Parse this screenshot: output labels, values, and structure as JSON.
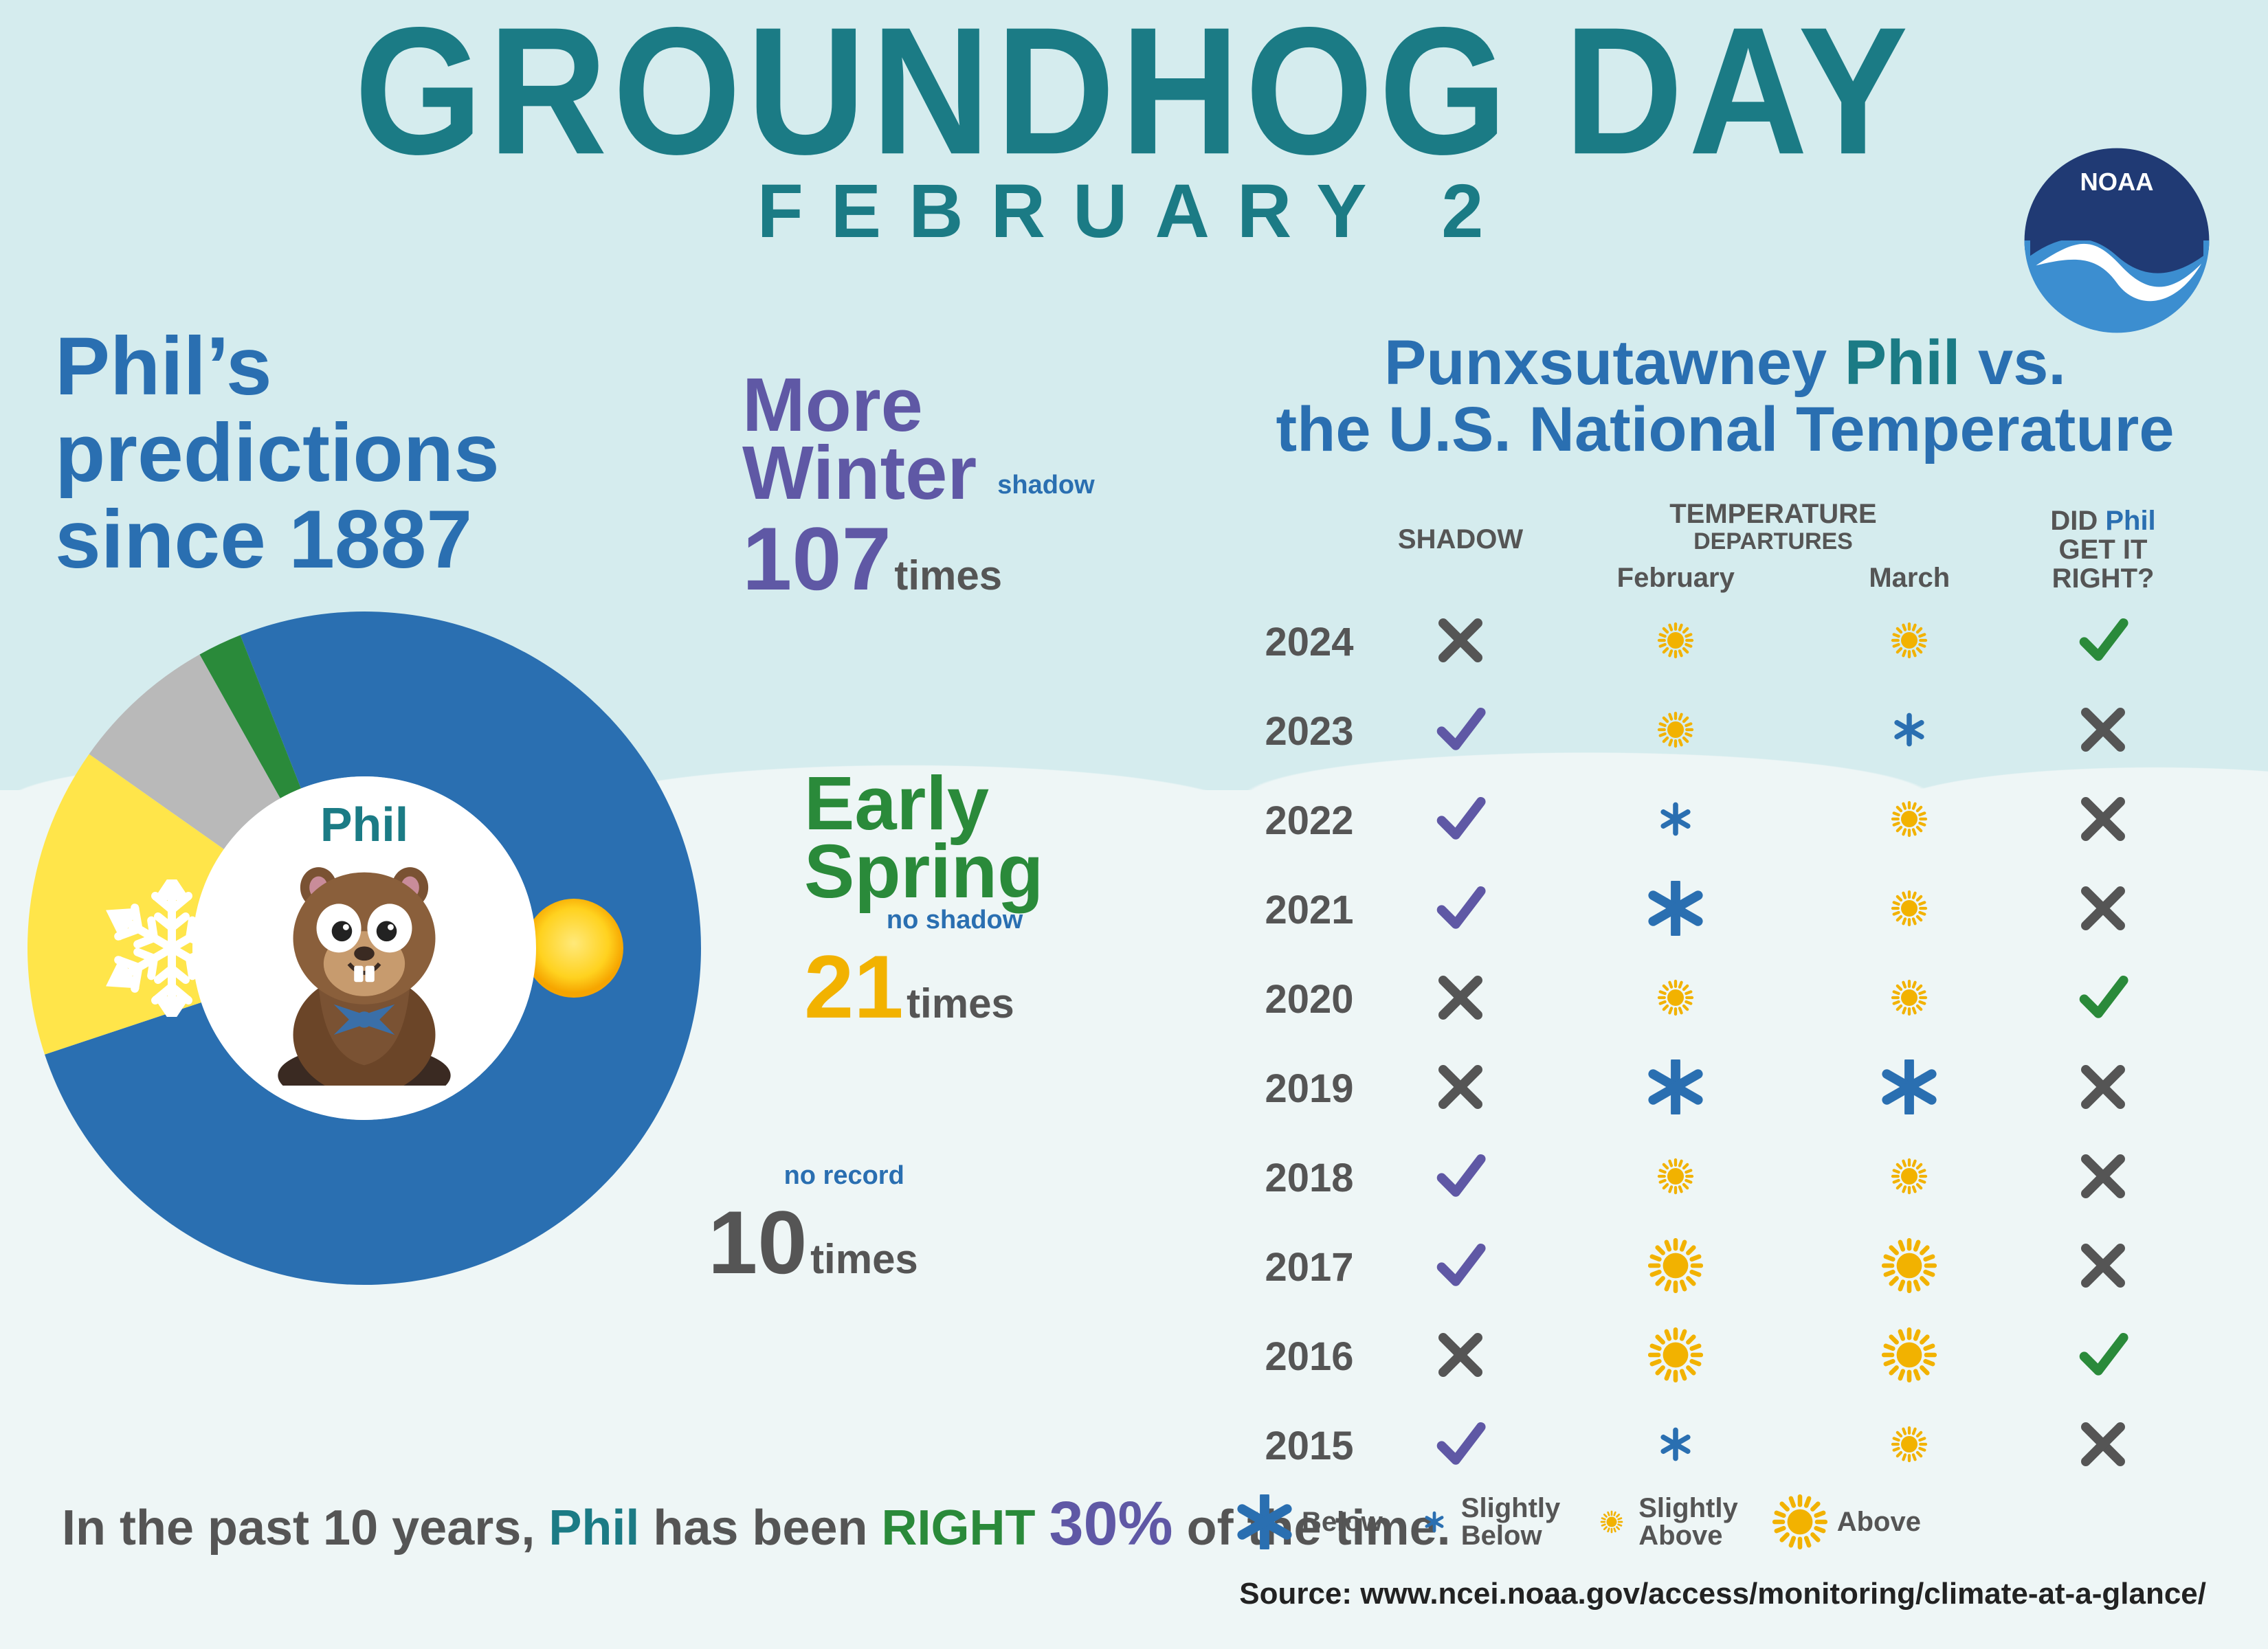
{
  "colors": {
    "bg_top": "#d5ecee",
    "bg_snow": "#eef6f6",
    "teal": "#1b7b85",
    "blue": "#2a6fb1",
    "purple": "#5f58a5",
    "green": "#2a8a3a",
    "yellow": "#f2b200",
    "gray": "#b9b9b9",
    "darkgray": "#555555",
    "donut_blue": "#2a6fb1",
    "donut_yellow": "#ffe54a",
    "donut_gray": "#b9b9b9",
    "donut_green": "#2a8a3a",
    "noaa_dark": "#203a74",
    "noaa_light": "#3c8ed0",
    "sun_fill": "#ffd21f",
    "sun_glow": "#f6a500",
    "check_green": "#2a8a3a",
    "check_purple": "#5f58a5",
    "x_gray": "#555555",
    "snowflake_blue": "#2a6fb1"
  },
  "title": {
    "main": "GROUNDHOG DAY",
    "sub": "FEBRUARY 2"
  },
  "noaa_label": "NOAA",
  "left_heading": {
    "l1": "Phil’s",
    "l2": "predictions",
    "l3": "since 1887"
  },
  "donut": {
    "type": "pie",
    "segments": {
      "winter": {
        "value": 107,
        "color": "#2a6fb1"
      },
      "spring": {
        "value": 21,
        "color": "#ffe54a"
      },
      "norecord": {
        "value": 10,
        "color": "#b9b9b9"
      },
      "gap": {
        "value": 3,
        "color": "#2a8a3a"
      }
    },
    "inner_radius": 250,
    "outer_radius": 490,
    "center_label": "Phil"
  },
  "kpi_winter": {
    "l1": "More",
    "l2": "Winter",
    "small": "shadow",
    "num": "107",
    "unit": "times"
  },
  "kpi_spring": {
    "l1": "Early",
    "l2": "Spring",
    "small": "no shadow",
    "num": "21",
    "unit": "times"
  },
  "kpi_norec": {
    "small": "no record",
    "num": "10",
    "unit": "times"
  },
  "bottom": {
    "pre": "In the past 10 years, ",
    "phil": "Phil",
    "mid": " has been ",
    "right": "RIGHT ",
    "pct": "30%",
    "post": " of the time."
  },
  "right_heading": {
    "l1_a": "Punxsutawney ",
    "l1_b": "Phil",
    "l1_c": " vs.",
    "l2": "the U.S. National Temperature"
  },
  "table": {
    "headers": {
      "year": "",
      "shadow": "SHADOW",
      "dep_top": "TEMPERATURE",
      "dep_sub": "DEPARTURES",
      "feb": "February",
      "mar": "March",
      "right_top": "DID",
      "right_phil": "Phil",
      "right_mid": "GET IT",
      "right_bot": "RIGHT?"
    },
    "rows": [
      {
        "year": "2024",
        "shadow": "no",
        "feb": "slightly_above",
        "mar": "slightly_above",
        "correct": "yes"
      },
      {
        "year": "2023",
        "shadow": "yes",
        "feb": "slightly_above",
        "mar": "slightly_below",
        "correct": "no"
      },
      {
        "year": "2022",
        "shadow": "yes",
        "feb": "slightly_below",
        "mar": "slightly_above",
        "correct": "no"
      },
      {
        "year": "2021",
        "shadow": "yes",
        "feb": "below",
        "mar": "slightly_above",
        "correct": "no"
      },
      {
        "year": "2020",
        "shadow": "no",
        "feb": "slightly_above",
        "mar": "slightly_above",
        "correct": "yes"
      },
      {
        "year": "2019",
        "shadow": "no",
        "feb": "below",
        "mar": "below",
        "correct": "no"
      },
      {
        "year": "2018",
        "shadow": "yes",
        "feb": "slightly_above",
        "mar": "slightly_above",
        "correct": "no"
      },
      {
        "year": "2017",
        "shadow": "yes",
        "feb": "above",
        "mar": "above",
        "correct": "no"
      },
      {
        "year": "2016",
        "shadow": "no",
        "feb": "above",
        "mar": "above",
        "correct": "yes"
      },
      {
        "year": "2015",
        "shadow": "yes",
        "feb": "slightly_below",
        "mar": "slightly_above",
        "correct": "no"
      }
    ]
  },
  "legend": {
    "below": "Below",
    "slightly_below": "Slightly\nBelow",
    "slightly_above": "Slightly\nAbove",
    "above": "Above"
  },
  "source": {
    "label": "Source: ",
    "url": "www.ncei.noaa.gov/access/monitoring/climate-at-a-glance/"
  }
}
